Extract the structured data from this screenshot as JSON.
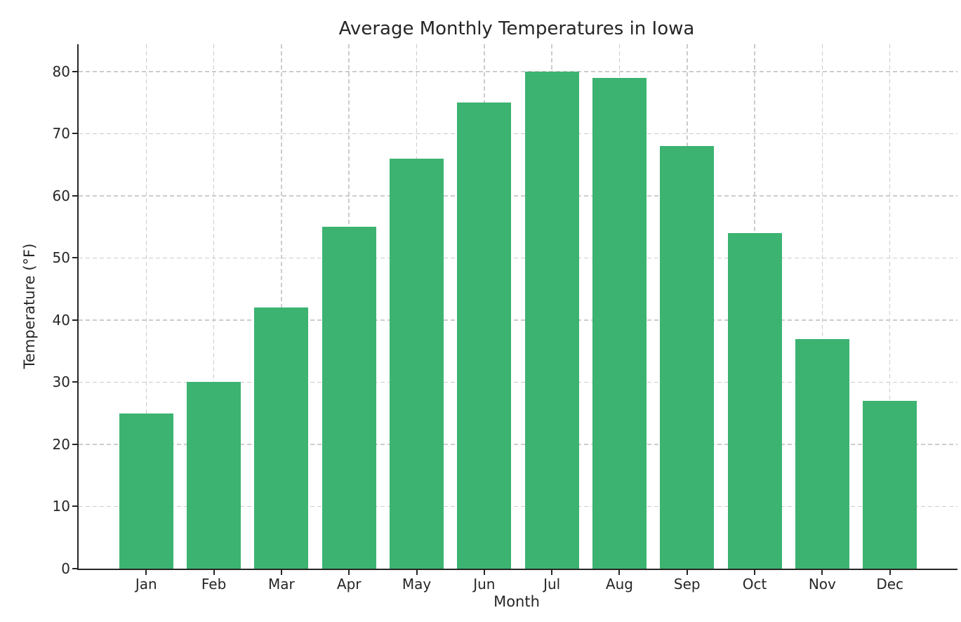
{
  "chart_data": {
    "type": "bar",
    "title": "Average Monthly Temperatures in Iowa",
    "xlabel": "Month",
    "ylabel": "Temperature (°F)",
    "categories": [
      "Jan",
      "Feb",
      "Mar",
      "Apr",
      "May",
      "Jun",
      "Jul",
      "Aug",
      "Sep",
      "Oct",
      "Nov",
      "Dec"
    ],
    "values": [
      25,
      30,
      42,
      55,
      66,
      75,
      80,
      79,
      68,
      54,
      37,
      27
    ],
    "yticks": [
      0,
      10,
      20,
      30,
      40,
      50,
      60,
      70,
      80
    ],
    "ylim": [
      0,
      84.4
    ],
    "bar_width_fraction": 0.8,
    "grid": "dashed, horizontal and vertical, behind bars",
    "legend_position": "none",
    "bar_color": "#3cb371",
    "grid_color": "#cccccc",
    "axis_color": "#262626",
    "text_color": "#262626",
    "background_color": "#ffffff"
  }
}
